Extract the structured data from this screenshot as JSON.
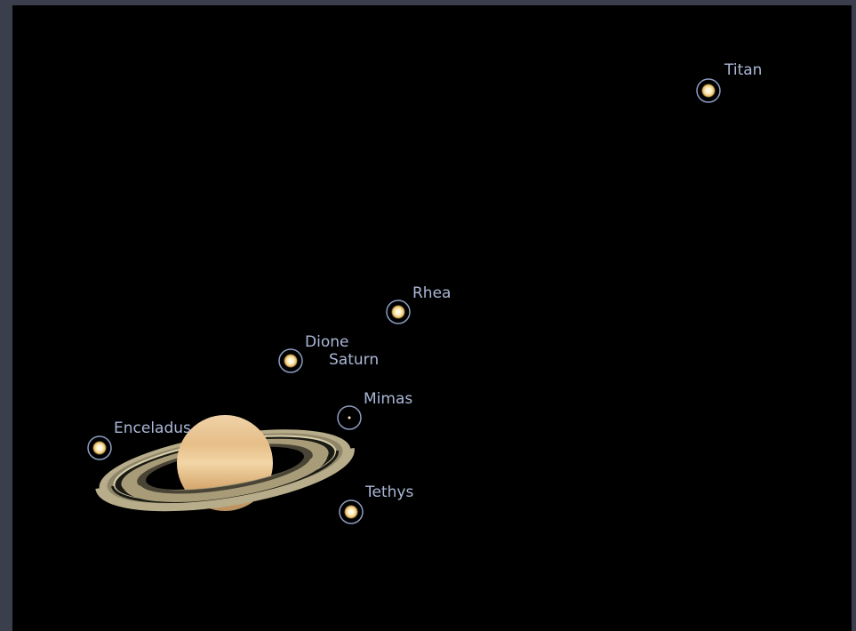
{
  "objects": [
    {
      "label": "Titan"
    },
    {
      "label": "Rhea"
    },
    {
      "label": "Dione"
    },
    {
      "label": "Saturn"
    },
    {
      "label": "Mimas"
    },
    {
      "label": "Enceladus"
    },
    {
      "label": "Tethys"
    }
  ]
}
